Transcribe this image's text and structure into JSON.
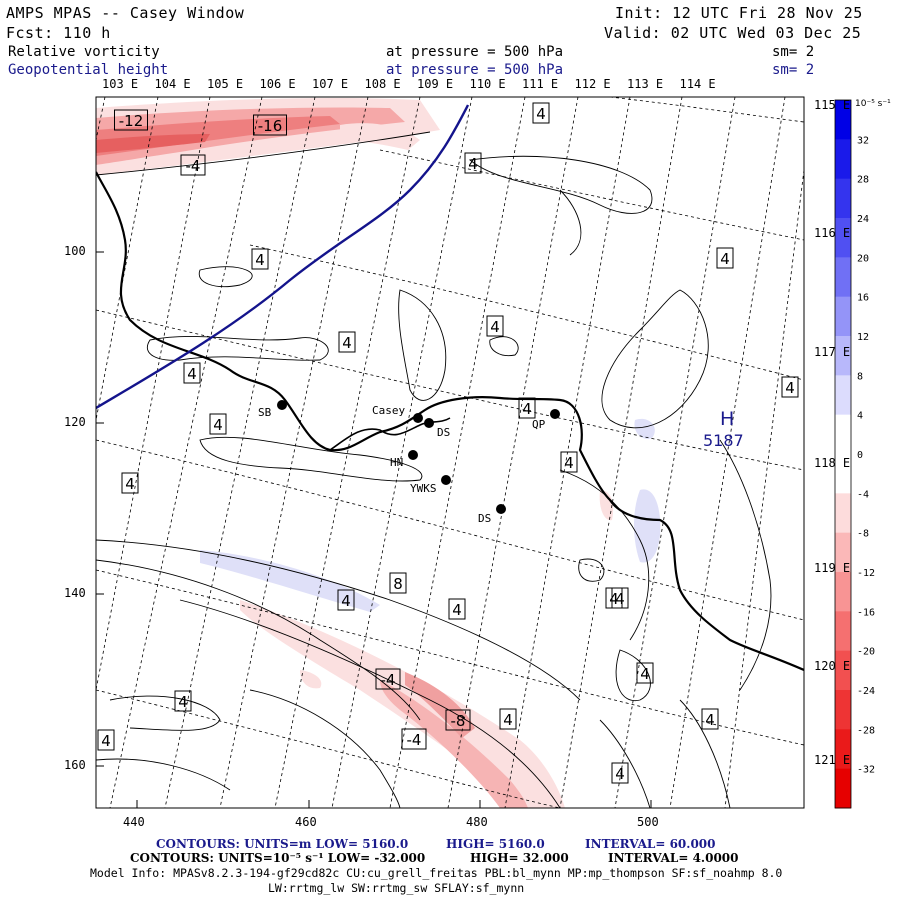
{
  "header": {
    "title": "AMPS MPAS -- Casey Window",
    "fcst": "Fcst:  110 h",
    "init": "Init: 12 UTC Fri 28 Nov 25",
    "valid": "Valid: 02 UTC Wed 03 Dec 25",
    "field1": "Relative vorticity",
    "field2": "Geopotential height",
    "pressure1": "at pressure =  500 hPa",
    "pressure2": "at pressure =  500 hPa",
    "sm1": "sm= 2",
    "sm2": "sm= 2"
  },
  "map": {
    "lon_labels_top": [
      "103 E",
      "104 E",
      "105 E",
      "106 E",
      "107 E",
      "108 E",
      "109 E",
      "110 E",
      "111 E",
      "112 E",
      "113 E",
      "114 E"
    ],
    "lon_labels_right": [
      "115 E",
      "116 E",
      "117 E",
      "118 E",
      "119 E",
      "120 E",
      "121 E"
    ],
    "y_ticks": [
      "100",
      "120",
      "140",
      "160"
    ],
    "x_ticks": [
      "440",
      "460",
      "480",
      "500"
    ],
    "stations": [
      {
        "name": "SB"
      },
      {
        "name": "Casey"
      },
      {
        "name": "DS"
      },
      {
        "name": "HN"
      },
      {
        "name": "YWKS"
      },
      {
        "name": "DS"
      },
      {
        "name": "QP"
      }
    ],
    "contour_labels": [
      "-12",
      "-16",
      "-4",
      "4",
      "4",
      "4",
      "4",
      "4",
      "4",
      "4",
      "4",
      "4",
      "4",
      "4",
      "4",
      "4",
      "8",
      "4",
      "-4",
      "-8",
      "-4",
      "4",
      "4",
      "4",
      "4",
      "4",
      "4",
      "4",
      "4"
    ],
    "high_label": "H",
    "high_value": "5187",
    "colors": {
      "positive": "#0000e6",
      "negative": "#e60000",
      "height_line": "#14148c"
    }
  },
  "colorbar": {
    "unit": "10⁻⁵ s⁻¹",
    "ticks": [
      "32",
      "28",
      "24",
      "20",
      "16",
      "12",
      "8",
      "4",
      "0",
      "-4",
      "-8",
      "-12",
      "-16",
      "-20",
      "-24",
      "-28",
      "-32"
    ]
  },
  "footer": {
    "line1_contours": "CONTOURS:  UNITS=m  LOW=  5160.0",
    "line1_high": "HIGH=  5160.0",
    "line1_interval": "INTERVAL=  60.000",
    "line2_contours": "CONTOURS:  UNITS=10⁻⁵ s⁻¹   LOW= -32.000",
    "line2_high": "HIGH=  32.000",
    "line2_interval": "INTERVAL=  4.0000",
    "model_info": "Model Info: MPASv8.2.3-194-gf29cd82c CU:cu_grell_freitas PBL:bl_mynn MP:mp_thompson SF:sf_noahmp 8.0",
    "model_info2": "LW:rrtmg_lw SW:rrtmg_sw SFLAY:sf_mynn"
  }
}
